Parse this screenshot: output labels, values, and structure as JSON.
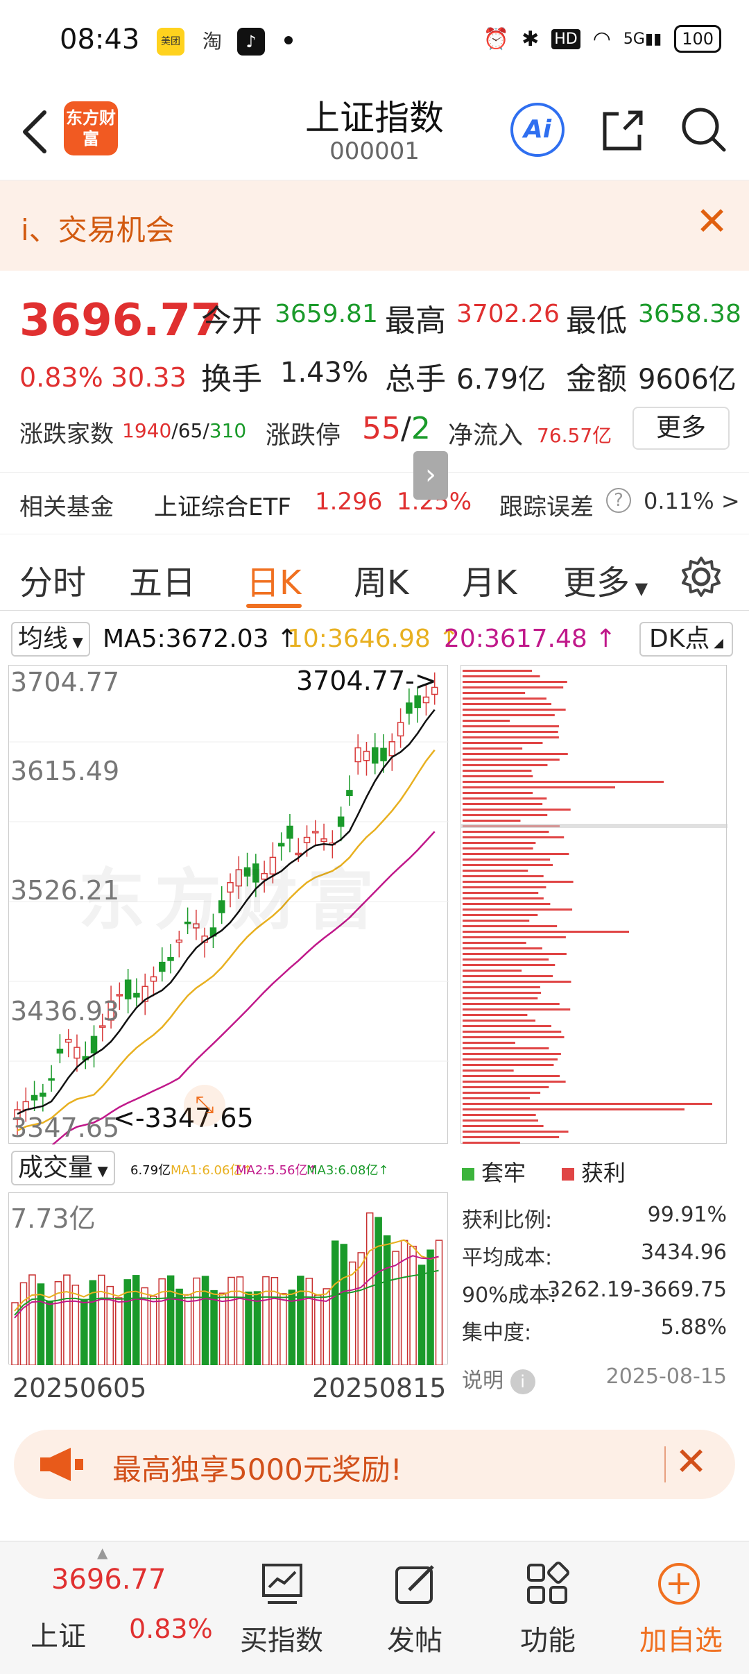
{
  "status": {
    "time": "08:43",
    "apps": [
      "美团",
      "淘",
      "♪"
    ],
    "network": "5G",
    "battery": "100"
  },
  "header": {
    "logo": "东方财富",
    "title": "上证指数",
    "code": "000001",
    "ai_label": "Ai"
  },
  "banner": {
    "text": "i、交易机会"
  },
  "quote": {
    "price": "3696.77",
    "change_pct": "0.83%",
    "change": "30.33",
    "open_label": "今开",
    "open": "3659.81",
    "high_label": "最高",
    "high": "3702.26",
    "low_label": "最低",
    "low": "3658.38",
    "turnover_label": "换手",
    "turnover": "1.43%",
    "volume_label": "总手",
    "volume": "6.79亿",
    "amount_label": "金额",
    "amount": "9606亿",
    "breadth_label": "涨跌家数",
    "breadth_up": "1940",
    "breadth_sep1": "/",
    "breadth_flat": "65",
    "breadth_sep2": "/",
    "breadth_down": "310",
    "limit_label": "涨跌停",
    "limit_up": "55",
    "limit_sep": "/",
    "limit_down": "2",
    "inflow_label": "净流入",
    "inflow": "76.57亿",
    "more": "更多"
  },
  "fund": {
    "label": "相关基金",
    "name": "上证综合ETF",
    "price": "1.296",
    "pct": "1.25%",
    "err_label": "跟踪误差",
    "err_value": "0.11% >"
  },
  "tabs": [
    "分时",
    "五日",
    "日K",
    "周K",
    "月K",
    "更多"
  ],
  "ma": {
    "select": "均线",
    "ma5": "MA5:3672.03",
    "ma10": "10:3646.98",
    "ma20": "20:3617.48",
    "dk": "DK点",
    "colors": {
      "ma5": "#111111",
      "ma10": "#e8b020",
      "ma20": "#c0188a"
    }
  },
  "kline": {
    "y_labels": [
      "3704.77",
      "3615.49",
      "3526.21",
      "3436.93",
      "3347.65"
    ],
    "high_marker": "3704.77->",
    "low_marker": "<-3347.65",
    "watermark": "东方财富"
  },
  "volume": {
    "select": "成交量",
    "vol": "6.79亿",
    "ma1": "MA1:6.06亿",
    "ma2": "MA2:5.56亿",
    "ma3": "MA3:6.08亿",
    "max_label": "7.73亿",
    "start_date": "20250605",
    "end_date": "20250815"
  },
  "chips": {
    "legend_trapped": "套牢",
    "legend_profit": "获利",
    "stats": [
      {
        "label": "获利比例:",
        "value": "99.91%"
      },
      {
        "label": "平均成本:",
        "value": "3434.96"
      },
      {
        "label": "90%成本:",
        "value": "3262.19-3669.75"
      },
      {
        "label": "集中度:",
        "value": "5.88%"
      }
    ],
    "note": "说明",
    "date": "2025-08-15"
  },
  "promo": {
    "text": "最高独享5000元奖励!"
  },
  "bottom": {
    "index_price": "3696.77",
    "index_name": "上证",
    "index_pct": "0.83%",
    "items": [
      "买指数",
      "发帖",
      "功能",
      "加自选"
    ]
  }
}
